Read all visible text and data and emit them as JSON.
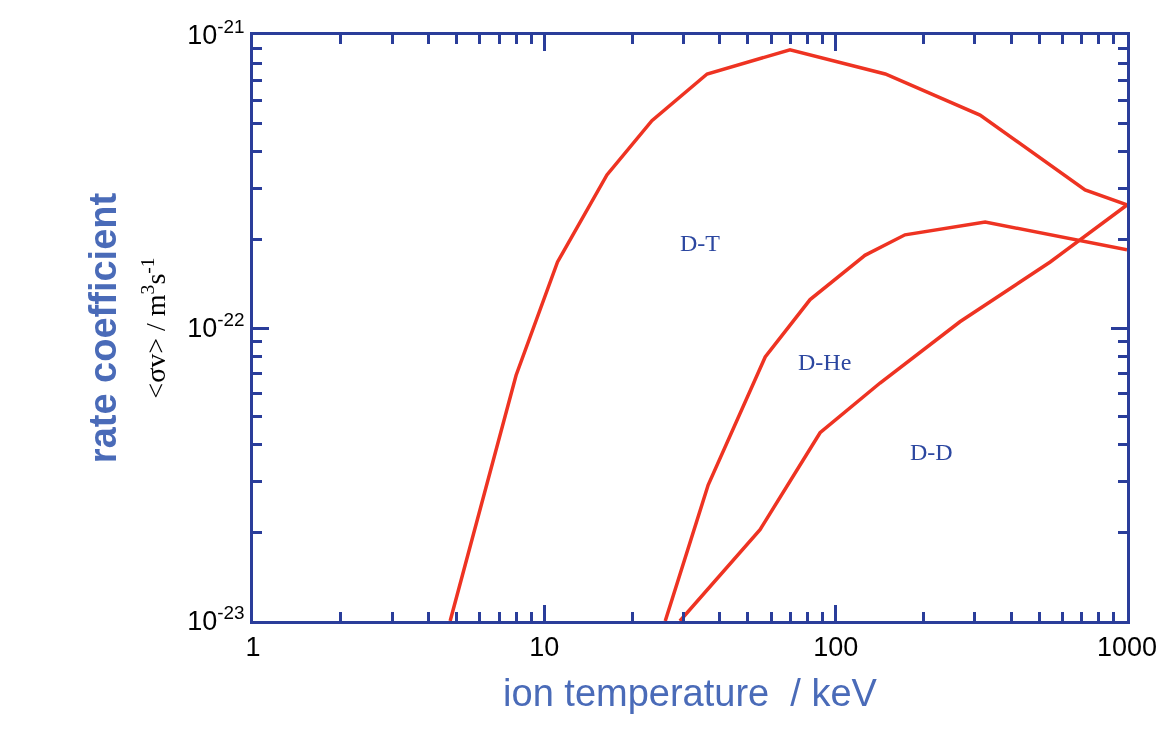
{
  "chart_data": {
    "type": "line",
    "xlabel": "ion temperature  / keV",
    "ylabel": "rate coefficient\n<σv> / m$^{3}$s$^{-1}$",
    "log": "xy",
    "xlim": [
      1,
      1000
    ],
    "xticks": [
      1,
      10,
      100,
      1000
    ],
    "ylim": [
      1e-23,
      1e-21
    ],
    "yticks": [
      {
        "value": 1e-23,
        "label": "10$^{-23}$"
      },
      {
        "value": 1e-22,
        "label": "10$^{-22}$"
      },
      {
        "value": 1e-21,
        "label": "10$^{-21}$"
      }
    ],
    "marker": "none",
    "line_style": "solid",
    "series": [
      {
        "color": "#ee3322",
        "x": [
          4.75,
          8.0,
          11.1,
          16.4,
          23.4,
          36.2,
          69.7,
          148,
          313,
          718,
          1000
        ],
        "values": [
          1e-23,
          6.9e-23,
          1.68e-22,
          3.33e-22,
          5.1e-22,
          7.36e-22,
          8.9e-22,
          7.36e-22,
          5.33e-22,
          2.96e-22,
          2.63e-22
        ]
      },
      {
        "color": "#ee3322",
        "x": [
          26,
          36.5,
          57.3,
          81.7,
          126,
          173,
          326,
          1000
        ],
        "values": [
          1e-23,
          2.91e-23,
          7.96e-23,
          1.25e-22,
          1.77e-22,
          2.08e-22,
          2.3e-22,
          1.85e-22
        ]
      },
      {
        "color": "#ee3322",
        "x": [
          29.2,
          55,
          88.4,
          142,
          267,
          545,
          1000
        ],
        "values": [
          1e-23,
          2.05e-23,
          4.39e-23,
          6.49e-23,
          1.05e-22,
          1.68e-22,
          2.63e-22
        ]
      }
    ],
    "annotations": [
      "D-T",
      "D-He",
      "D-D"
    ]
  }
}
